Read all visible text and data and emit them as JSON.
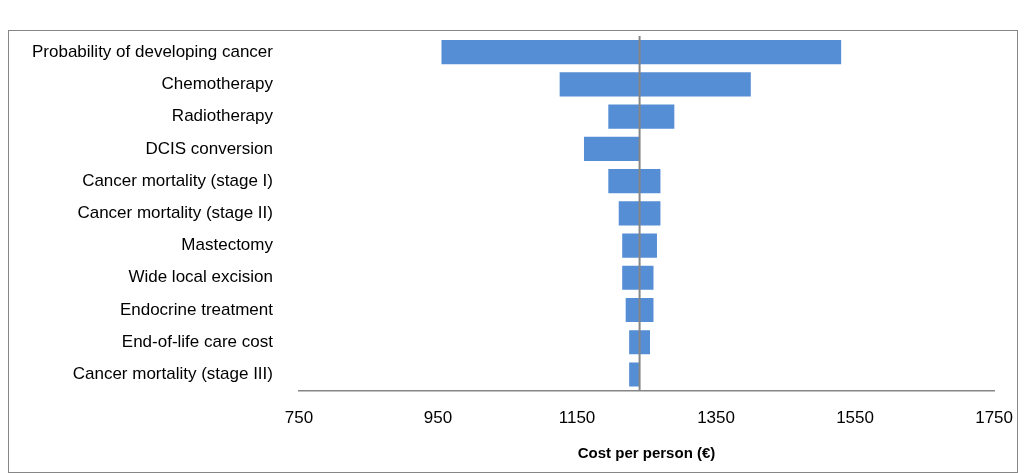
{
  "chart_data": {
    "type": "bar",
    "orientation": "horizontal",
    "xlabel": "Cost per person (€)",
    "categories": [
      "Probability of developing cancer",
      "Chemotherapy",
      "Radiotherapy",
      "DCIS conversion",
      "Cancer mortality (stage I)",
      "Cancer mortality (stage II)",
      "Mastectomy",
      "Wide local excision",
      "Endocrine treatment",
      "End-of-life care cost",
      "Cancer mortality (stage III)"
    ],
    "base": [
      955,
      1125,
      1195,
      1160,
      1195,
      1210,
      1215,
      1215,
      1220,
      1225,
      1225
    ],
    "values": [
      575,
      275,
      95,
      80,
      75,
      60,
      50,
      45,
      40,
      30,
      15
    ],
    "color": "#558ed5",
    "xlim": [
      750,
      1750
    ],
    "xticks": [
      750,
      950,
      1150,
      1350,
      1550,
      1750
    ],
    "ref_lines": [
      {
        "axis": "x",
        "value": 1240,
        "color": "#868686"
      }
    ],
    "grid": false,
    "legend": false
  }
}
